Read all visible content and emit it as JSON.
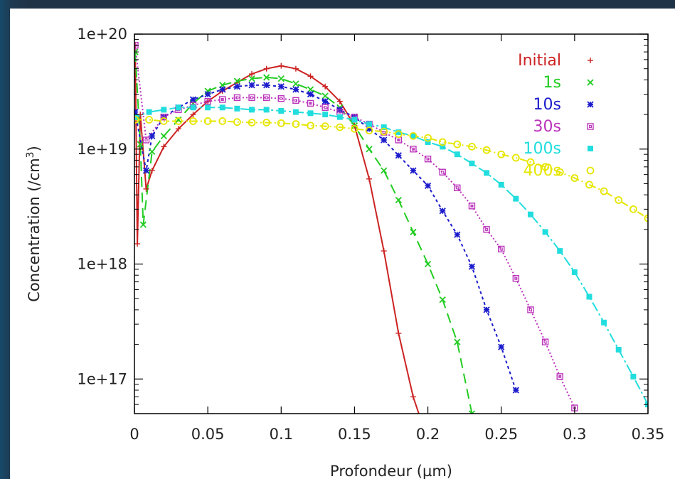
{
  "chart_data": {
    "type": "scatter",
    "xlabel": "Profondeur (µm)",
    "ylabel_main": "Concentration (/cm",
    "ylabel_sup": "3",
    "ylabel_tail": ")",
    "xlim": [
      0,
      0.35
    ],
    "ylim": [
      5e+16,
      1e+20
    ],
    "yscale": "log",
    "x_ticks": [
      0,
      0.05,
      0.1,
      0.15,
      0.2,
      0.25,
      0.3,
      0.35
    ],
    "x_tick_labels": [
      "0",
      "0.05",
      "0.1",
      "0.15",
      "0.2",
      "0.25",
      "0.3",
      "0.35"
    ],
    "y_ticks": [
      1e+17,
      1e+18,
      1e+19,
      1e+20
    ],
    "y_tick_labels": [
      "1e+17",
      "1e+18",
      "1e+19",
      "1e+20"
    ],
    "grid": false,
    "legend_position": "top-right",
    "series": [
      {
        "name": "Initial",
        "color": "#cc2222",
        "marker": "+",
        "dash": "",
        "points": [
          [
            0.0005,
            8e+19
          ],
          [
            0.002,
            1.5e+18
          ],
          [
            0.004,
            2e+19
          ],
          [
            0.008,
            4.5e+18
          ],
          [
            0.012,
            6.5e+18
          ],
          [
            0.02,
            1.05e+19
          ],
          [
            0.03,
            1.5e+19
          ],
          [
            0.04,
            2e+19
          ],
          [
            0.05,
            2.6e+19
          ],
          [
            0.06,
            3.2e+19
          ],
          [
            0.07,
            3.8e+19
          ],
          [
            0.08,
            4.5e+19
          ],
          [
            0.09,
            5e+19
          ],
          [
            0.1,
            5.3e+19
          ],
          [
            0.11,
            5e+19
          ],
          [
            0.12,
            4.3e+19
          ],
          [
            0.13,
            3.5e+19
          ],
          [
            0.14,
            2.6e+19
          ],
          [
            0.15,
            1.6e+19
          ],
          [
            0.16,
            5.5e+18
          ],
          [
            0.17,
            1.3e+18
          ],
          [
            0.18,
            2.5e+17
          ],
          [
            0.19,
            7e+16
          ],
          [
            0.195,
            4.5e+16
          ]
        ]
      },
      {
        "name": "1s",
        "color": "#22cc22",
        "marker": "x",
        "dash": "14,8",
        "points": [
          [
            0.0005,
            7e+19
          ],
          [
            0.004,
            1.1e+19
          ],
          [
            0.006,
            2.2e+18
          ],
          [
            0.012,
            9.5e+18
          ],
          [
            0.02,
            1.3e+19
          ],
          [
            0.03,
            1.8e+19
          ],
          [
            0.04,
            2.5e+19
          ],
          [
            0.05,
            3.2e+19
          ],
          [
            0.06,
            3.6e+19
          ],
          [
            0.07,
            3.9e+19
          ],
          [
            0.08,
            4.1e+19
          ],
          [
            0.09,
            4.2e+19
          ],
          [
            0.1,
            4.1e+19
          ],
          [
            0.11,
            3.7e+19
          ],
          [
            0.12,
            3.3e+19
          ],
          [
            0.13,
            2.9e+19
          ],
          [
            0.14,
            2.3e+19
          ],
          [
            0.15,
            1.6e+19
          ],
          [
            0.16,
            1e+19
          ],
          [
            0.17,
            6.5e+18
          ],
          [
            0.18,
            3.6e+18
          ],
          [
            0.19,
            1.9e+18
          ],
          [
            0.2,
            1e+18
          ],
          [
            0.21,
            4.9e+17
          ],
          [
            0.22,
            2.1e+17
          ],
          [
            0.23,
            5e+16
          ]
        ]
      },
      {
        "name": "10s",
        "color": "#1c1ccc",
        "marker": "*",
        "dash": "4,4",
        "points": [
          [
            0.0005,
            2.1e+19
          ],
          [
            0.008,
            6.5e+18
          ],
          [
            0.012,
            1.3e+19
          ],
          [
            0.02,
            1.9e+19
          ],
          [
            0.03,
            2.3e+19
          ],
          [
            0.04,
            2.7e+19
          ],
          [
            0.05,
            3e+19
          ],
          [
            0.06,
            3.3e+19
          ],
          [
            0.07,
            3.5e+19
          ],
          [
            0.08,
            3.6e+19
          ],
          [
            0.09,
            3.6e+19
          ],
          [
            0.1,
            3.5e+19
          ],
          [
            0.11,
            3.3e+19
          ],
          [
            0.12,
            3e+19
          ],
          [
            0.13,
            2.6e+19
          ],
          [
            0.14,
            2.2e+19
          ],
          [
            0.15,
            1.9e+19
          ],
          [
            0.16,
            1.5e+19
          ],
          [
            0.17,
            1.2e+19
          ],
          [
            0.18,
            8.8e+18
          ],
          [
            0.19,
            6.5e+18
          ],
          [
            0.2,
            4.8e+18
          ],
          [
            0.21,
            2.9e+18
          ],
          [
            0.22,
            1.8e+18
          ],
          [
            0.23,
            9.5e+17
          ],
          [
            0.24,
            4e+17
          ],
          [
            0.25,
            1.9e+17
          ],
          [
            0.26,
            8e+16
          ]
        ]
      },
      {
        "name": "30s",
        "color": "#bb33bb",
        "marker": "square",
        "dash": "2,3",
        "points": [
          [
            0.0005,
            8e+19
          ],
          [
            0.008,
            1.2e+19
          ],
          [
            0.02,
            1.9e+19
          ],
          [
            0.03,
            2.2e+19
          ],
          [
            0.04,
            2.4e+19
          ],
          [
            0.05,
            2.6e+19
          ],
          [
            0.06,
            2.7e+19
          ],
          [
            0.07,
            2.8e+19
          ],
          [
            0.08,
            2.8e+19
          ],
          [
            0.09,
            2.8e+19
          ],
          [
            0.1,
            2.75e+19
          ],
          [
            0.11,
            2.65e+19
          ],
          [
            0.12,
            2.5e+19
          ],
          [
            0.13,
            2.3e+19
          ],
          [
            0.14,
            2.1e+19
          ],
          [
            0.15,
            1.9e+19
          ],
          [
            0.16,
            1.65e+19
          ],
          [
            0.17,
            1.4e+19
          ],
          [
            0.18,
            1.2e+19
          ],
          [
            0.19,
            1e+19
          ],
          [
            0.2,
            8.2e+18
          ],
          [
            0.21,
            6.3e+18
          ],
          [
            0.22,
            4.6e+18
          ],
          [
            0.23,
            3.2e+18
          ],
          [
            0.24,
            2e+18
          ],
          [
            0.25,
            1.35e+18
          ],
          [
            0.26,
            7.5e+17
          ],
          [
            0.27,
            4e+17
          ],
          [
            0.28,
            2.1e+17
          ],
          [
            0.29,
            1.05e+17
          ],
          [
            0.3,
            5.6e+16
          ]
        ]
      },
      {
        "name": "100s",
        "color": "#22dddd",
        "marker": "filled-square",
        "dash": "14,4,3,4",
        "points": [
          [
            0.0005,
            1.9e+19
          ],
          [
            0.01,
            2.1e+19
          ],
          [
            0.02,
            2.2e+19
          ],
          [
            0.03,
            2.3e+19
          ],
          [
            0.04,
            2.3e+19
          ],
          [
            0.05,
            2.3e+19
          ],
          [
            0.06,
            2.3e+19
          ],
          [
            0.07,
            2.25e+19
          ],
          [
            0.08,
            2.2e+19
          ],
          [
            0.09,
            2.2e+19
          ],
          [
            0.1,
            2.15e+19
          ],
          [
            0.11,
            2.1e+19
          ],
          [
            0.12,
            2.05e+19
          ],
          [
            0.13,
            2e+19
          ],
          [
            0.14,
            1.9e+19
          ],
          [
            0.15,
            1.8e+19
          ],
          [
            0.16,
            1.65e+19
          ],
          [
            0.17,
            1.55e+19
          ],
          [
            0.18,
            1.4e+19
          ],
          [
            0.19,
            1.3e+19
          ],
          [
            0.2,
            1.15e+19
          ],
          [
            0.21,
            1.05e+19
          ],
          [
            0.22,
            9e+18
          ],
          [
            0.23,
            7.5e+18
          ],
          [
            0.24,
            6.2e+18
          ],
          [
            0.25,
            4.9e+18
          ],
          [
            0.26,
            3.7e+18
          ],
          [
            0.27,
            2.7e+18
          ],
          [
            0.28,
            1.9e+18
          ],
          [
            0.29,
            1.3e+18
          ],
          [
            0.3,
            8.5e+17
          ],
          [
            0.31,
            5.2e+17
          ],
          [
            0.32,
            3.1e+17
          ],
          [
            0.33,
            1.8e+17
          ],
          [
            0.34,
            1.05e+17
          ],
          [
            0.35,
            6e+16
          ]
        ]
      },
      {
        "name": "400s",
        "color": "#e6e600",
        "marker": "circle",
        "dash": "10,4,2,4,2,4",
        "points": [
          [
            0.0005,
            1.8e+19
          ],
          [
            0.01,
            1.8e+19
          ],
          [
            0.02,
            1.75e+19
          ],
          [
            0.03,
            1.75e+19
          ],
          [
            0.04,
            1.75e+19
          ],
          [
            0.05,
            1.75e+19
          ],
          [
            0.06,
            1.75e+19
          ],
          [
            0.07,
            1.72e+19
          ],
          [
            0.08,
            1.7e+19
          ],
          [
            0.09,
            1.7e+19
          ],
          [
            0.1,
            1.68e+19
          ],
          [
            0.11,
            1.65e+19
          ],
          [
            0.12,
            1.6e+19
          ],
          [
            0.13,
            1.58e+19
          ],
          [
            0.14,
            1.55e+19
          ],
          [
            0.15,
            1.5e+19
          ],
          [
            0.16,
            1.45e+19
          ],
          [
            0.17,
            1.42e+19
          ],
          [
            0.18,
            1.35e+19
          ],
          [
            0.19,
            1.3e+19
          ],
          [
            0.2,
            1.25e+19
          ],
          [
            0.21,
            1.15e+19
          ],
          [
            0.22,
            1.1e+19
          ],
          [
            0.23,
            1.05e+19
          ],
          [
            0.24,
            9.8e+18
          ],
          [
            0.25,
            9e+18
          ],
          [
            0.26,
            8.4e+18
          ],
          [
            0.27,
            7.7e+18
          ],
          [
            0.28,
            7e+18
          ],
          [
            0.29,
            6.3e+18
          ],
          [
            0.3,
            5.6e+18
          ],
          [
            0.31,
            4.9e+18
          ],
          [
            0.32,
            4.3e+18
          ],
          [
            0.33,
            3.6e+18
          ],
          [
            0.34,
            3e+18
          ],
          [
            0.35,
            2.5e+18
          ]
        ]
      }
    ]
  }
}
